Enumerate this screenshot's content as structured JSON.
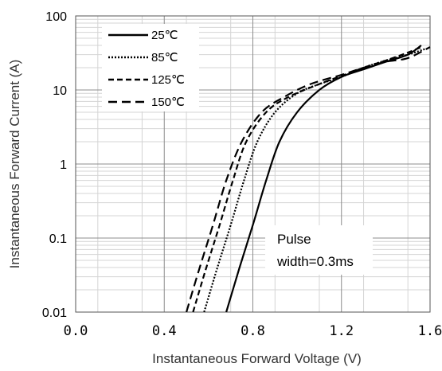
{
  "chart_data": {
    "type": "line",
    "title": "",
    "xlabel": "Instantaneous Forward Voltage (V)",
    "ylabel": "Instantaneous Forward Current (A)",
    "xlim": [
      0.0,
      1.6
    ],
    "ylim": [
      0.01,
      100
    ],
    "y_scale": "log",
    "grid": true,
    "legend_position": "top-left",
    "x_ticks": [
      "0.0",
      "0.4",
      "0.8",
      "1.2",
      "1.6"
    ],
    "y_ticks": [
      "0.01",
      "0.1",
      "1",
      "10",
      "100"
    ],
    "series": [
      {
        "name": "25℃",
        "dash": "solid",
        "points": [
          [
            0.68,
            0.01
          ],
          [
            0.74,
            0.04
          ],
          [
            0.8,
            0.15
          ],
          [
            0.86,
            0.6
          ],
          [
            0.92,
            2.0
          ],
          [
            1.0,
            5.0
          ],
          [
            1.1,
            10.0
          ],
          [
            1.2,
            15.0
          ],
          [
            1.3,
            19.0
          ],
          [
            1.4,
            24.0
          ],
          [
            1.5,
            30.0
          ],
          [
            1.56,
            40.0
          ]
        ]
      },
      {
        "name": "85℃",
        "dash": "dotted",
        "points": [
          [
            0.58,
            0.01
          ],
          [
            0.64,
            0.04
          ],
          [
            0.7,
            0.15
          ],
          [
            0.76,
            0.6
          ],
          [
            0.82,
            2.0
          ],
          [
            0.9,
            5.0
          ],
          [
            1.0,
            9.0
          ],
          [
            1.1,
            12.0
          ],
          [
            1.2,
            15.0
          ],
          [
            1.3,
            20.0
          ],
          [
            1.4,
            25.0
          ],
          [
            1.5,
            30.0
          ],
          [
            1.58,
            36.0
          ]
        ]
      },
      {
        "name": "125℃",
        "dash": "dashed",
        "points": [
          [
            0.53,
            0.01
          ],
          [
            0.59,
            0.04
          ],
          [
            0.65,
            0.15
          ],
          [
            0.71,
            0.6
          ],
          [
            0.77,
            2.0
          ],
          [
            0.86,
            5.0
          ],
          [
            0.96,
            8.0
          ],
          [
            1.1,
            12.0
          ],
          [
            1.2,
            15.5
          ],
          [
            1.3,
            20.0
          ],
          [
            1.4,
            25.0
          ],
          [
            1.5,
            32.0
          ],
          [
            1.56,
            38.0
          ]
        ]
      },
      {
        "name": "150℃",
        "dash": "long-dashed",
        "points": [
          [
            0.5,
            0.01
          ],
          [
            0.56,
            0.04
          ],
          [
            0.62,
            0.15
          ],
          [
            0.68,
            0.6
          ],
          [
            0.75,
            2.0
          ],
          [
            0.84,
            5.0
          ],
          [
            0.94,
            8.0
          ],
          [
            1.06,
            12.0
          ],
          [
            1.2,
            16.0
          ],
          [
            1.3,
            20.0
          ],
          [
            1.4,
            24.0
          ],
          [
            1.5,
            27.0
          ],
          [
            1.6,
            38.0
          ]
        ]
      }
    ],
    "annotation": {
      "line1": "Pulse",
      "line2": "width=0.3ms"
    }
  }
}
